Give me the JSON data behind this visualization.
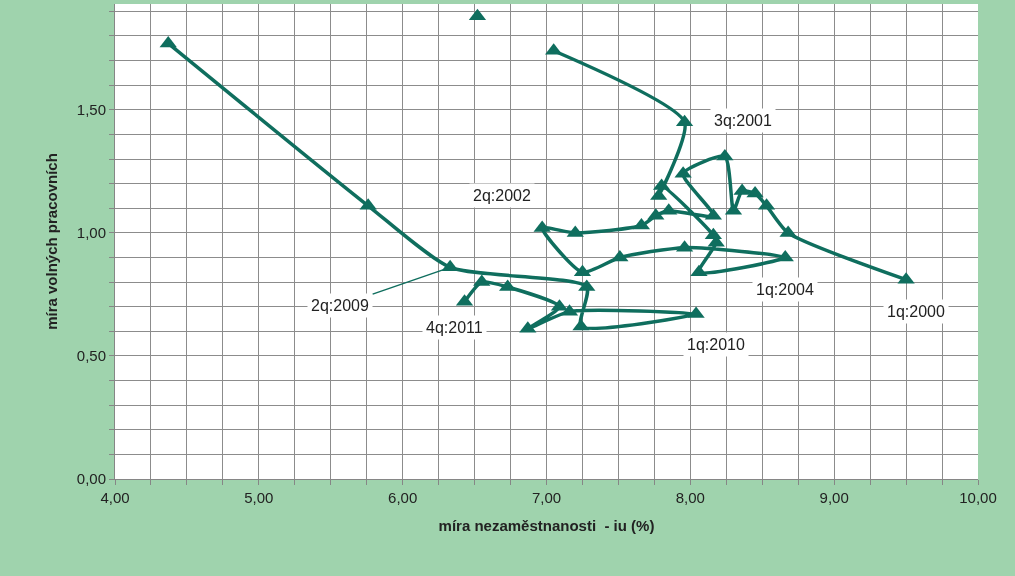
{
  "chart_data": {
    "type": "line",
    "xlabel": "míra nezaměstnanosti  - iu (%)",
    "ylabel": "míra volných pracovních",
    "series": [
      {
        "color": "#0f6e5e",
        "x": [
          9.5,
          8.68,
          8.53,
          8.45,
          8.36,
          8.3,
          8.24,
          7.95,
          8.16,
          7.85,
          7.76,
          7.66,
          7.2,
          6.97,
          7.25,
          7.51,
          7.96,
          8.66,
          8.06,
          8.18,
          8.16,
          7.8,
          7.78,
          7.96,
          7.05,
          null,
          6.52,
          null,
          4.37,
          5.76,
          6.33,
          7.28,
          7.24,
          8.04,
          7.16,
          6.87,
          7.09,
          6.73,
          6.55,
          6.43
        ],
        "values": [
          0.81,
          1.0,
          1.11,
          1.16,
          1.17,
          1.09,
          1.31,
          1.24,
          1.07,
          1.09,
          1.07,
          1.03,
          1.0,
          1.02,
          0.84,
          0.9,
          0.94,
          0.9,
          0.84,
          0.96,
          0.99,
          1.19,
          1.15,
          1.45,
          1.74,
          null,
          1.88,
          null,
          1.77,
          1.11,
          0.86,
          0.78,
          0.62,
          0.67,
          0.68,
          0.61,
          0.7,
          0.78,
          0.8,
          0.72
        ]
      }
    ],
    "marker": "triangle",
    "line_style": "solid",
    "grid": true,
    "xlim": [
      4,
      10
    ],
    "ylim": [
      0,
      1.93
    ],
    "xticks": [
      {
        "value": 4,
        "label": "4,00"
      },
      {
        "value": 4.25,
        "label": null
      },
      {
        "value": 4.5,
        "label": null
      },
      {
        "value": 4.75,
        "label": null
      },
      {
        "value": 5,
        "label": "5,00"
      },
      {
        "value": 5.25,
        "label": null
      },
      {
        "value": 5.5,
        "label": null
      },
      {
        "value": 5.75,
        "label": null
      },
      {
        "value": 6,
        "label": "6,00"
      },
      {
        "value": 6.25,
        "label": null
      },
      {
        "value": 6.5,
        "label": null
      },
      {
        "value": 6.75,
        "label": null
      },
      {
        "value": 7,
        "label": "7,00"
      },
      {
        "value": 7.25,
        "label": null
      },
      {
        "value": 7.5,
        "label": null
      },
      {
        "value": 7.75,
        "label": null
      },
      {
        "value": 8,
        "label": "8,00"
      },
      {
        "value": 8.25,
        "label": null
      },
      {
        "value": 8.5,
        "label": null
      },
      {
        "value": 8.75,
        "label": null
      },
      {
        "value": 9,
        "label": "9,00"
      },
      {
        "value": 9.25,
        "label": null
      },
      {
        "value": 9.5,
        "label": null
      },
      {
        "value": 9.75,
        "label": null
      },
      {
        "value": 10,
        "label": "10,00"
      }
    ],
    "yticks": [
      {
        "value": 0,
        "label": "0,00"
      },
      {
        "value": 0.1,
        "label": null
      },
      {
        "value": 0.2,
        "label": null
      },
      {
        "value": 0.3,
        "label": null
      },
      {
        "value": 0.4,
        "label": null
      },
      {
        "value": 0.5,
        "label": "0,50"
      },
      {
        "value": 0.6,
        "label": null
      },
      {
        "value": 0.7,
        "label": null
      },
      {
        "value": 0.8,
        "label": null
      },
      {
        "value": 0.9,
        "label": null
      },
      {
        "value": 1.0,
        "label": "1,00"
      },
      {
        "value": 1.1,
        "label": null
      },
      {
        "value": 1.2,
        "label": null
      },
      {
        "value": 1.3,
        "label": null
      },
      {
        "value": 1.4,
        "label": null
      },
      {
        "value": 1.5,
        "label": "1,50"
      },
      {
        "value": 1.6,
        "label": null
      },
      {
        "value": 1.7,
        "label": null
      },
      {
        "value": 1.8,
        "label": null
      },
      {
        "value": 1.9,
        "label": null
      }
    ],
    "annotations": [
      {
        "text": "1q:2000",
        "x": 9.5,
        "y": 0.81
      },
      {
        "text": "3q:2001",
        "x": 7.96,
        "y": 1.45
      },
      {
        "text": "2q:2002",
        "x": 6.97,
        "y": 1.02
      },
      {
        "text": "1q:2004",
        "x": 8.66,
        "y": 0.9
      },
      {
        "text": "2q:2009",
        "x": 6.33,
        "y": 0.86
      },
      {
        "text": "1q:2010",
        "x": 8.04,
        "y": 0.67
      },
      {
        "text": "4q:2011",
        "x": 6.43,
        "y": 0.72
      }
    ]
  }
}
